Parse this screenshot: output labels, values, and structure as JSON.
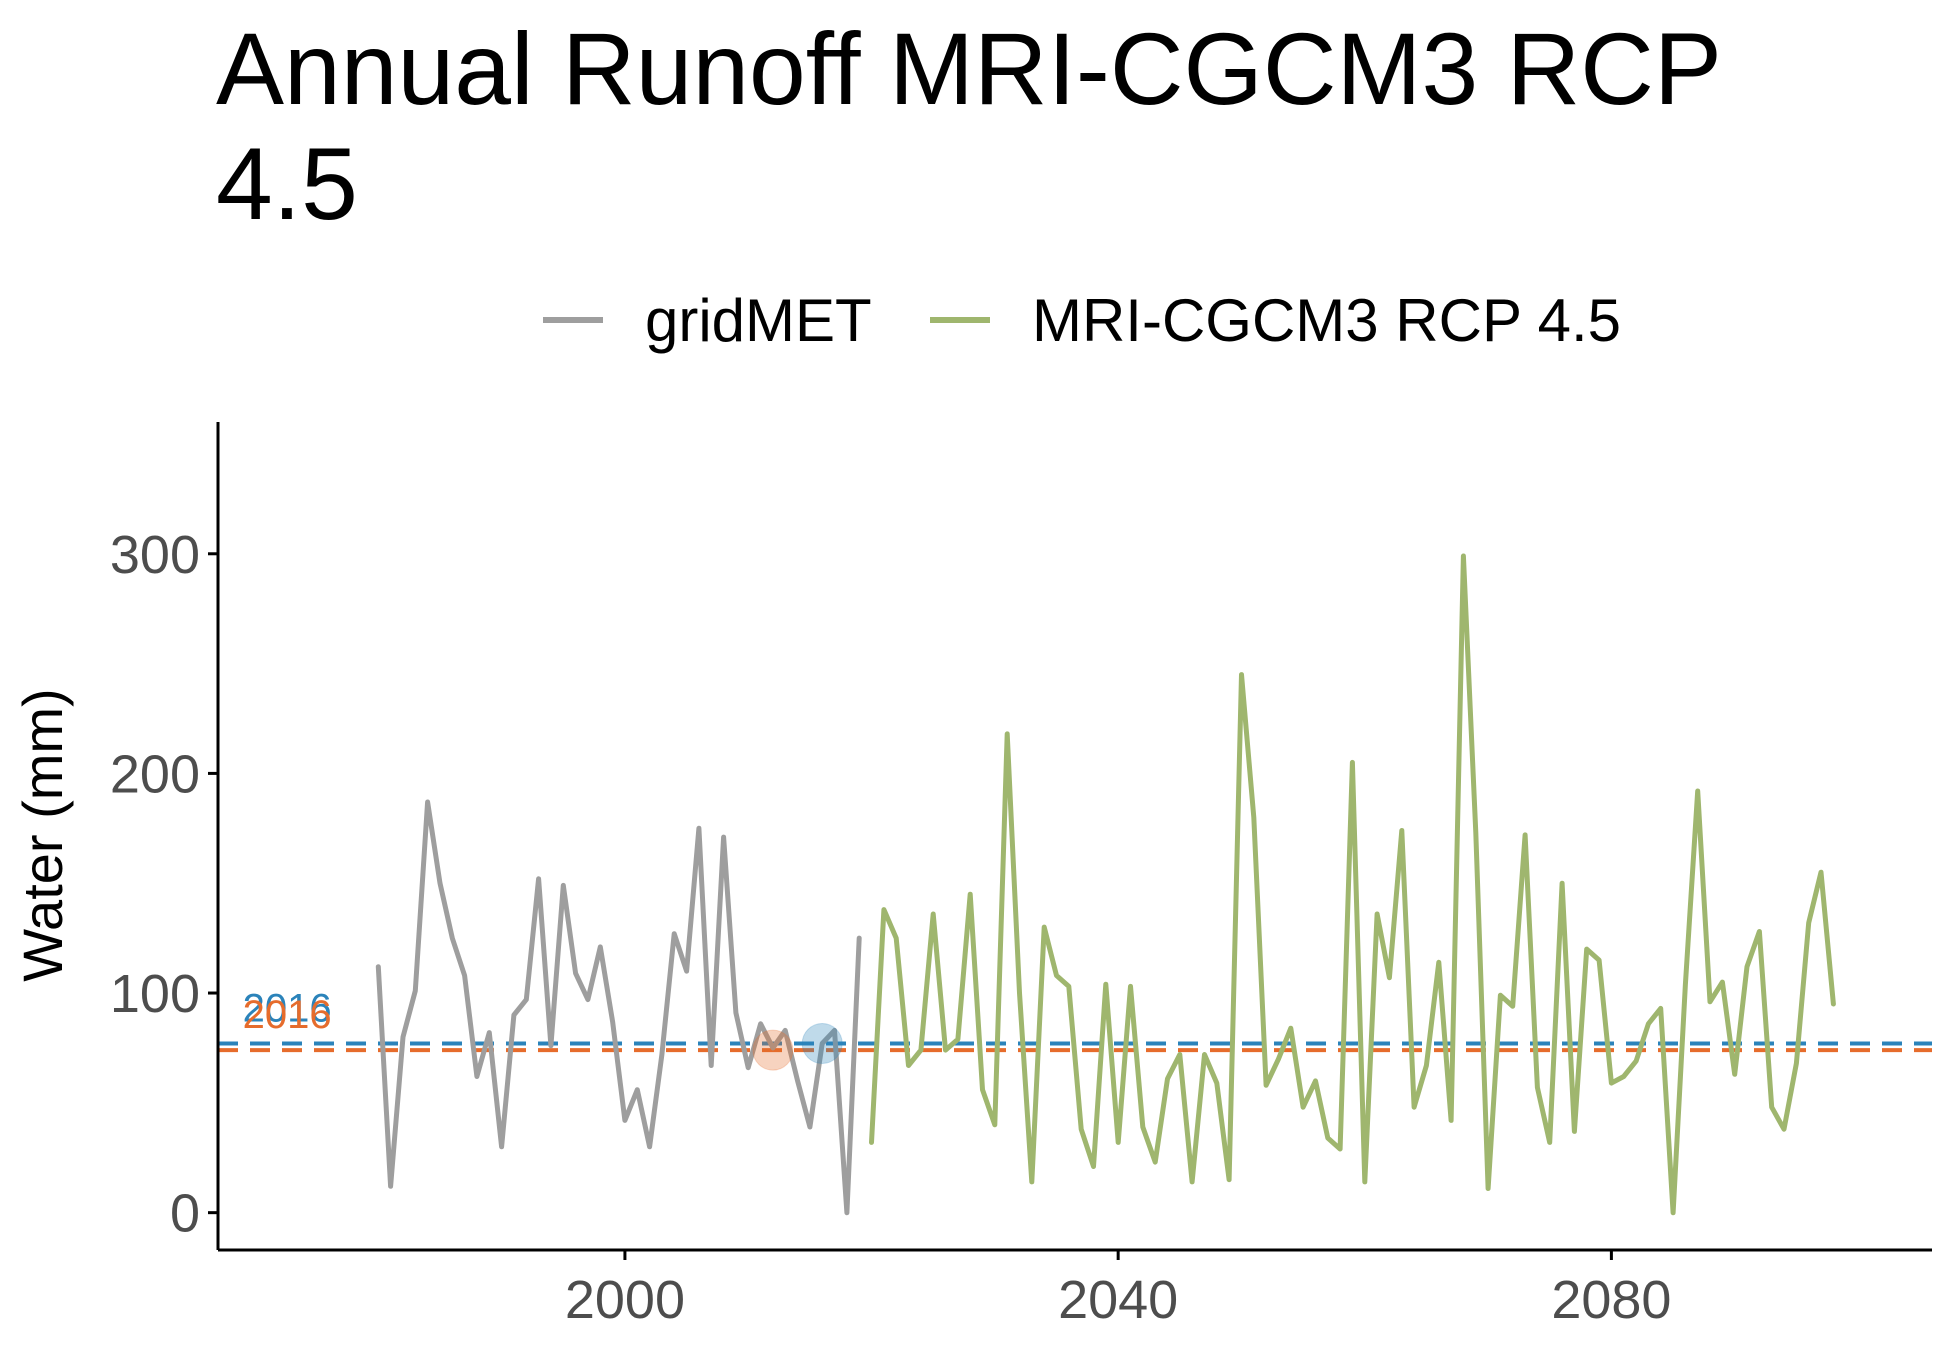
{
  "chart_data": {
    "type": "line",
    "title": "Annual Runoff MRI-CGCM3 RCP 4.5",
    "xlabel": "",
    "ylabel": "Water (mm)",
    "xlim": [
      1967,
      2106
    ],
    "ylim": [
      -17,
      360
    ],
    "x_ticks": [
      2000,
      2040,
      2080
    ],
    "y_ticks": [
      0,
      100,
      200,
      300
    ],
    "grid": false,
    "legend_position": "top",
    "colors": {
      "gridMET": "#9e9e9e",
      "MRI-CGCM3 RCP 4.5": "#9fb66e",
      "ref_blue": "#2b83ba",
      "ref_orange": "#e66c2c",
      "axis": "#000000",
      "tick_text": "#4d4d4d"
    },
    "series": [
      {
        "name": "gridMET",
        "x": [
          1980,
          1981,
          1982,
          1983,
          1984,
          1985,
          1986,
          1987,
          1988,
          1989,
          1990,
          1991,
          1992,
          1993,
          1994,
          1995,
          1996,
          1997,
          1998,
          1999,
          2000,
          2001,
          2002,
          2003,
          2004,
          2005,
          2006,
          2007,
          2008,
          2009,
          2010,
          2011,
          2012,
          2013,
          2014,
          2015,
          2016,
          2017,
          2018,
          2019
        ],
        "y": [
          112,
          12,
          80,
          101,
          187,
          150,
          125,
          108,
          62,
          82,
          30,
          90,
          97,
          152,
          76,
          149,
          109,
          97,
          121,
          87,
          42,
          56,
          30,
          72,
          127,
          110,
          175,
          67,
          171,
          91,
          66,
          86,
          75,
          83,
          60,
          39,
          77,
          83,
          0,
          125
        ]
      },
      {
        "name": "MRI-CGCM3 RCP 4.5",
        "x": [
          2020,
          2021,
          2022,
          2023,
          2024,
          2025,
          2026,
          2027,
          2028,
          2029,
          2030,
          2031,
          2032,
          2033,
          2034,
          2035,
          2036,
          2037,
          2038,
          2039,
          2040,
          2041,
          2042,
          2043,
          2044,
          2045,
          2046,
          2047,
          2048,
          2049,
          2050,
          2051,
          2052,
          2053,
          2054,
          2055,
          2056,
          2057,
          2058,
          2059,
          2060,
          2061,
          2062,
          2063,
          2064,
          2065,
          2066,
          2067,
          2068,
          2069,
          2070,
          2071,
          2072,
          2073,
          2074,
          2075,
          2076,
          2077,
          2078,
          2079,
          2080,
          2081,
          2082,
          2083,
          2084,
          2085,
          2086,
          2087,
          2088,
          2089,
          2090,
          2091,
          2092,
          2093,
          2094,
          2095,
          2096,
          2097,
          2098,
          2099
        ],
        "y": [
          32,
          138,
          125,
          67,
          74,
          136,
          74,
          79,
          145,
          56,
          40,
          218,
          100,
          14,
          130,
          108,
          103,
          38,
          21,
          104,
          32,
          103,
          39,
          23,
          61,
          72,
          14,
          72,
          59,
          15,
          245,
          180,
          58,
          70,
          84,
          48,
          60,
          34,
          29,
          205,
          14,
          136,
          107,
          174,
          48,
          67,
          114,
          42,
          299,
          173,
          11,
          99,
          94,
          172,
          57,
          32,
          150,
          37,
          120,
          115,
          59,
          62,
          69,
          86,
          93,
          0,
          104,
          192,
          96,
          105,
          63,
          112,
          128,
          48,
          38,
          68,
          132,
          155,
          95,
          null
        ]
      }
    ],
    "reference_lines": [
      {
        "color": "blue",
        "y": 77
      },
      {
        "color": "orange",
        "y": 74
      }
    ],
    "highlight_points": [
      {
        "color": "orange",
        "x": 2012,
        "y": 74
      },
      {
        "color": "blue",
        "x": 2016,
        "y": 77
      }
    ],
    "annotations": [
      {
        "text": "2016",
        "color": "blue",
        "x": 1969,
        "y": 87
      },
      {
        "text": "2016",
        "color": "orange",
        "x": 1969,
        "y": 84
      }
    ]
  }
}
